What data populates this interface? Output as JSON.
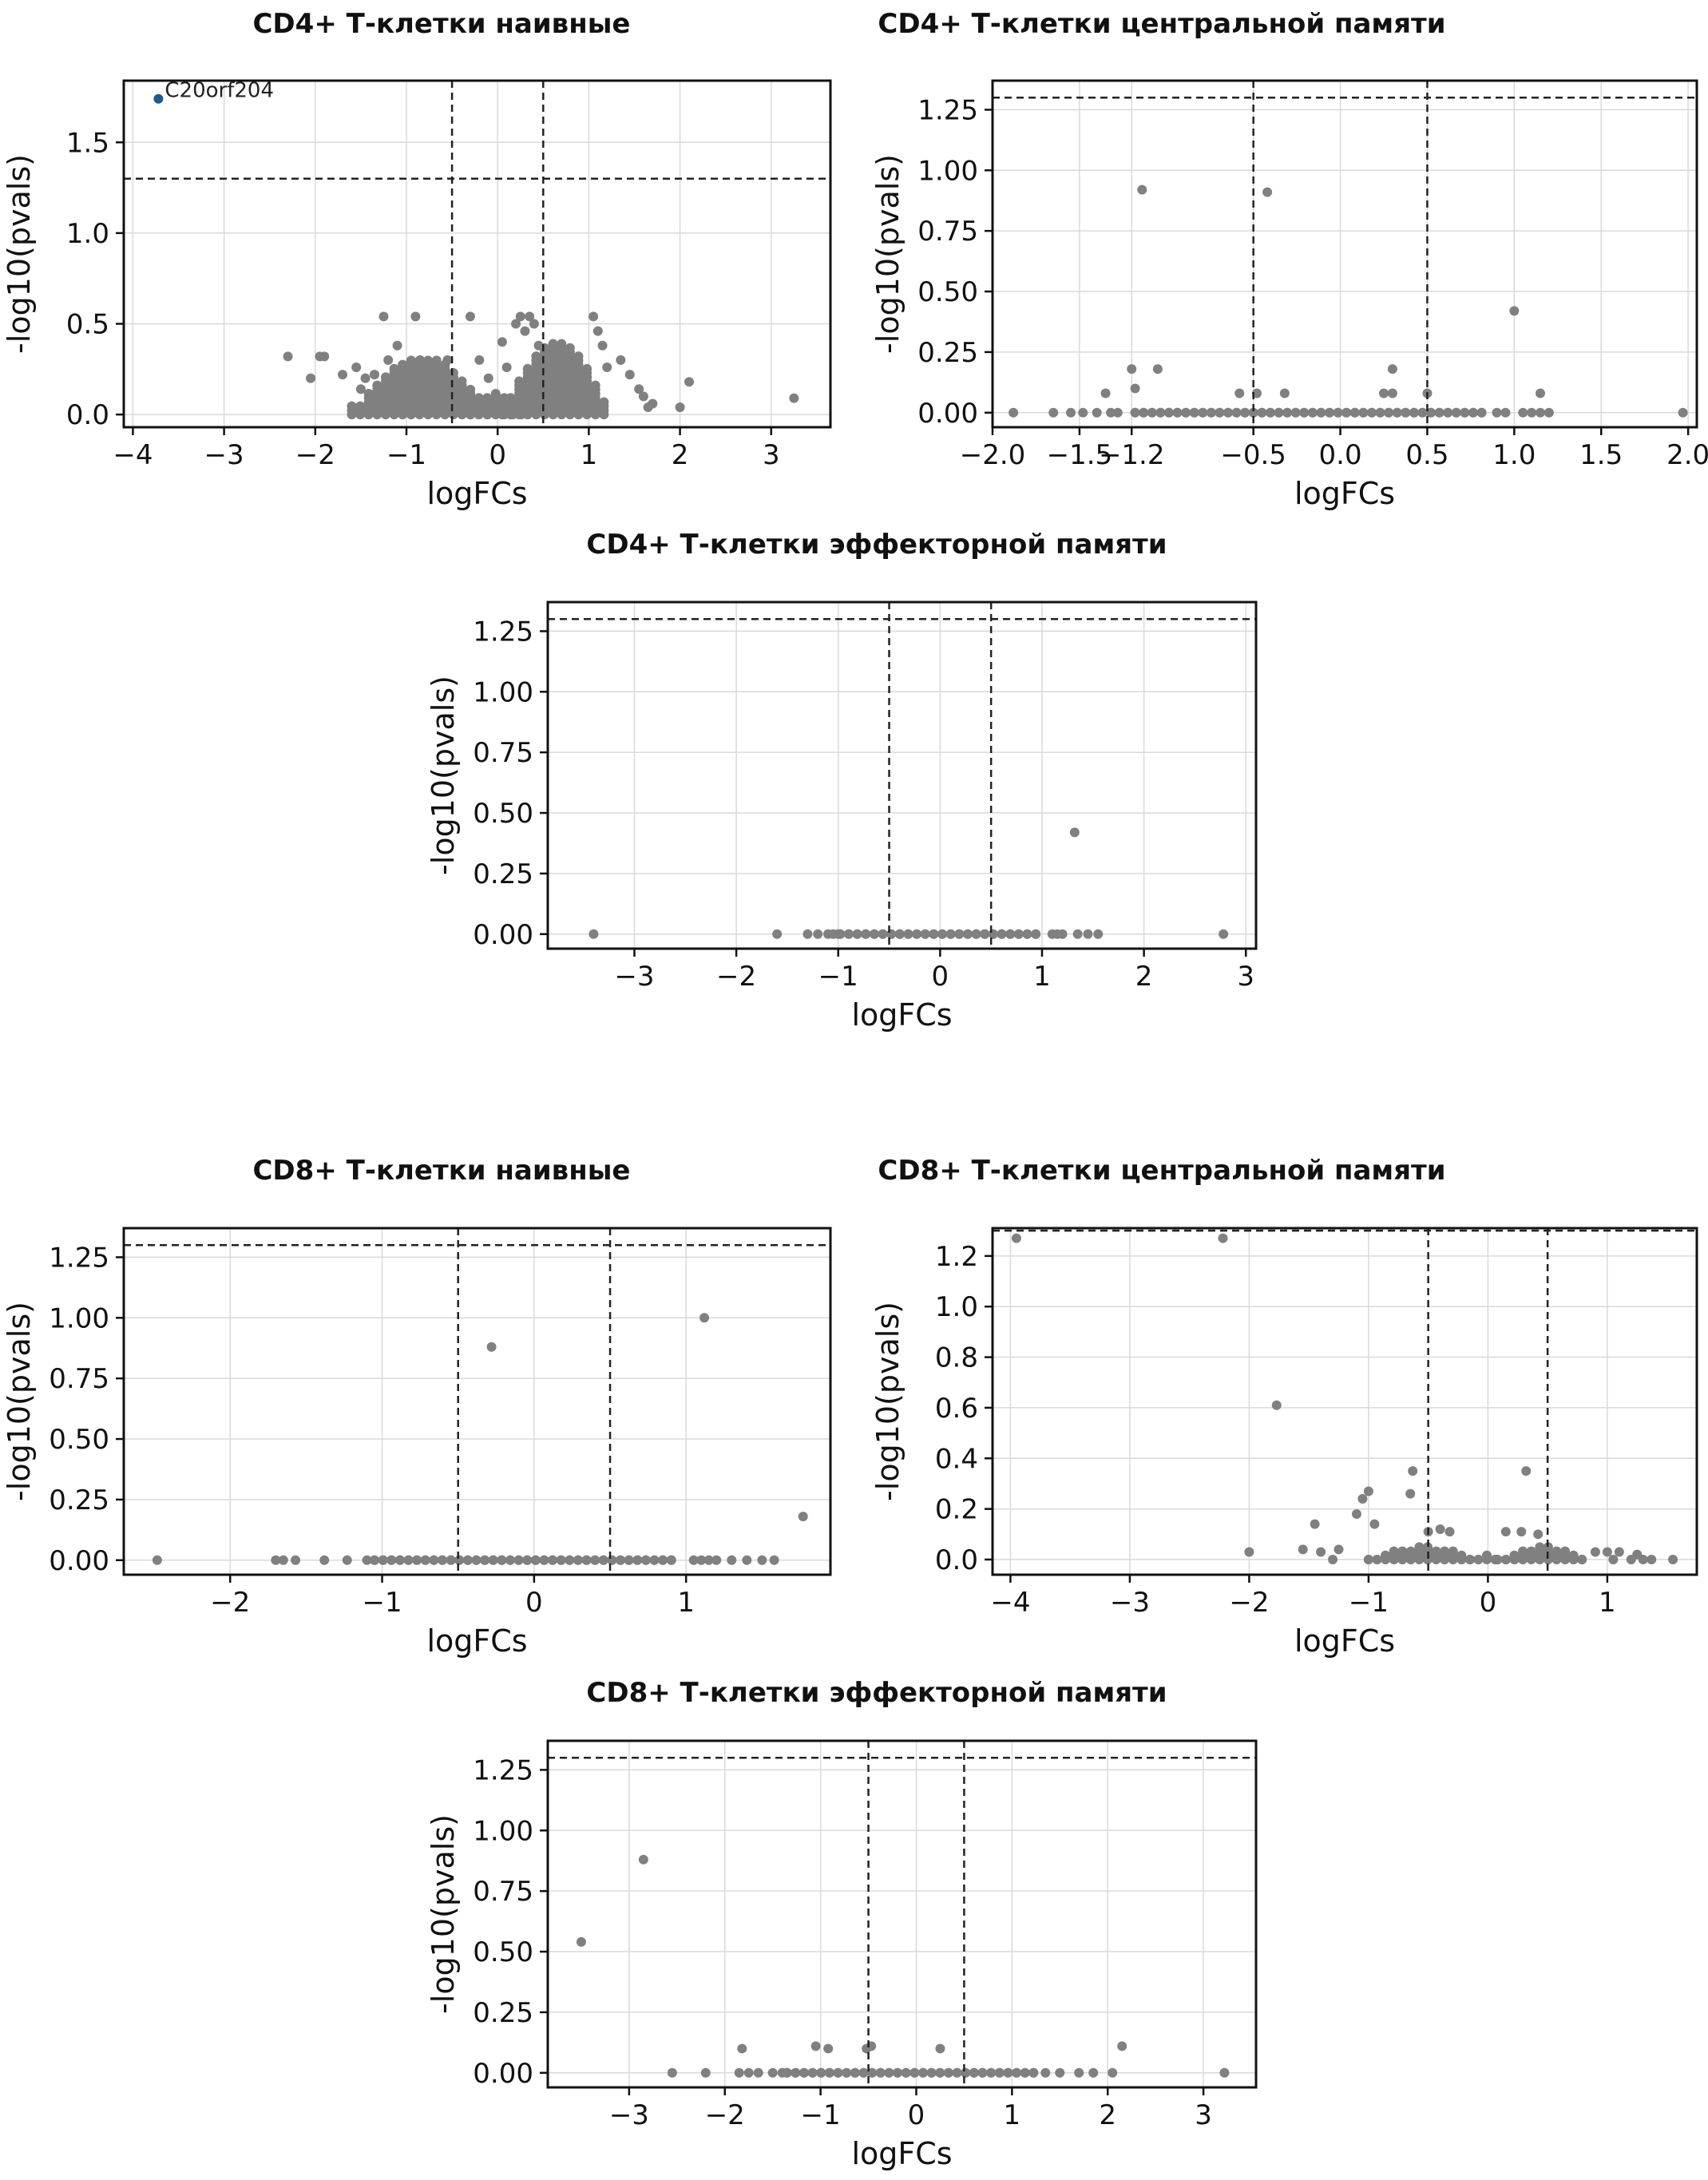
{
  "figure": {
    "background": "#ffffff",
    "point_color": "#808080",
    "highlight_color": "#1f5a8a",
    "grid_color": "#d9d9d9",
    "threshold_line_style": "dashed",
    "threshold_color": "#222222"
  },
  "chart_data": [
    {
      "type": "scatter",
      "title": "CD4+ Т-клетки наивные",
      "xlabel": "logFCs",
      "ylabel": "-log10(pvals)",
      "xlim": [
        -4.1,
        3.65
      ],
      "ylim": [
        -0.07,
        1.84
      ],
      "xticks": [
        -4,
        -3,
        -2,
        -1,
        0,
        1,
        2,
        3
      ],
      "xtick_labels": [
        "−4",
        "−3",
        "−2",
        "−1",
        "0",
        "1",
        "2",
        "3"
      ],
      "yticks": [
        0.0,
        0.5,
        1.0,
        1.5
      ],
      "ytick_labels": [
        "0.0",
        "0.5",
        "1.0",
        "1.5"
      ],
      "grid": true,
      "thresholds": {
        "y": 1.3,
        "x": [
          -0.5,
          0.5
        ]
      },
      "highlight_points": [
        {
          "x": -3.72,
          "y": 1.74,
          "label": "C20orf204"
        }
      ],
      "points": [
        [
          -2.3,
          0.32
        ],
        [
          -2.05,
          0.2
        ],
        [
          -1.95,
          0.32
        ],
        [
          -1.9,
          0.32
        ],
        [
          -1.7,
          0.22
        ],
        [
          -1.55,
          0.26
        ],
        [
          -1.5,
          0.14
        ],
        [
          -1.45,
          0.2
        ],
        [
          -1.35,
          0.22
        ],
        [
          -1.25,
          0.54
        ],
        [
          -1.2,
          0.3
        ],
        [
          -1.1,
          0.38
        ],
        [
          -1.05,
          0.26
        ],
        [
          -0.95,
          0.12
        ],
        [
          -0.9,
          0.54
        ],
        [
          -0.85,
          0.3
        ],
        [
          -0.75,
          0.22
        ],
        [
          -0.65,
          0.18
        ],
        [
          -0.55,
          0.3
        ],
        [
          -0.5,
          0.2
        ],
        [
          -0.4,
          0.14
        ],
        [
          -0.3,
          0.54
        ],
        [
          -0.2,
          0.3
        ],
        [
          -0.1,
          0.2
        ],
        [
          0.05,
          0.4
        ],
        [
          0.1,
          0.26
        ],
        [
          0.2,
          0.5
        ],
        [
          0.25,
          0.54
        ],
        [
          0.3,
          0.46
        ],
        [
          0.35,
          0.54
        ],
        [
          0.4,
          0.5
        ],
        [
          0.45,
          0.38
        ],
        [
          0.5,
          0.3
        ],
        [
          0.6,
          0.26
        ],
        [
          0.7,
          0.2
        ],
        [
          0.8,
          0.3
        ],
        [
          0.95,
          0.14
        ],
        [
          1.05,
          0.54
        ],
        [
          1.1,
          0.46
        ],
        [
          1.15,
          0.38
        ],
        [
          1.2,
          0.26
        ],
        [
          1.35,
          0.3
        ],
        [
          1.45,
          0.22
        ],
        [
          1.55,
          0.14
        ],
        [
          1.6,
          0.1
        ],
        [
          1.65,
          0.04
        ],
        [
          1.7,
          0.06
        ],
        [
          2.0,
          0.04
        ],
        [
          2.1,
          0.18
        ],
        [
          3.25,
          0.09
        ]
      ],
      "dense_bands": [
        {
          "x_from": -1.6,
          "x_to": -0.05,
          "y_max": 0.32
        },
        {
          "x_from": 0.05,
          "x_to": 1.25,
          "y_max": 0.4
        },
        {
          "x_from": -0.3,
          "x_to": 0.3,
          "y_max": 0.12
        }
      ]
    },
    {
      "type": "scatter",
      "title": "CD4+ Т-клетки центральной памяти",
      "xlabel": "logFCs",
      "ylabel": "-log10(pvals)",
      "xlim": [
        -2.0,
        2.05
      ],
      "ylim": [
        -0.06,
        1.37
      ],
      "xticks": [
        -2.0,
        -1.5,
        -1.2,
        -0.5,
        0.0,
        0.5,
        1.0,
        1.5,
        2.0
      ],
      "xtick_labels": [
        "−2.0",
        "−1.5",
        "−1.2",
        "−0.5",
        "0.0",
        "0.5",
        "1.0",
        "1.5",
        "2.0"
      ],
      "yticks": [
        0.0,
        0.25,
        0.5,
        0.75,
        1.0,
        1.25
      ],
      "ytick_labels": [
        "0.00",
        "0.25",
        "0.50",
        "0.75",
        "1.00",
        "1.25"
      ],
      "grid": true,
      "thresholds": {
        "y": 1.3,
        "x": [
          -0.5,
          0.5
        ]
      },
      "highlight_points": [],
      "points": [
        [
          -1.14,
          0.92
        ],
        [
          -0.42,
          0.91
        ],
        [
          1.0,
          0.42
        ],
        [
          -1.2,
          0.18
        ],
        [
          -1.05,
          0.18
        ],
        [
          0.3,
          0.18
        ],
        [
          -1.35,
          0.08
        ],
        [
          -1.18,
          0.1
        ],
        [
          -0.58,
          0.08
        ],
        [
          -0.48,
          0.08
        ],
        [
          -0.32,
          0.08
        ],
        [
          0.25,
          0.08
        ],
        [
          0.3,
          0.08
        ],
        [
          0.5,
          0.08
        ],
        [
          1.15,
          0.08
        ],
        [
          -1.88,
          0.0
        ],
        [
          -1.65,
          0.0
        ],
        [
          -1.55,
          0.0
        ],
        [
          -1.48,
          0.0
        ],
        [
          -1.4,
          0.0
        ],
        [
          -1.32,
          0.0
        ],
        [
          -1.28,
          0.0
        ],
        [
          0.9,
          0.0
        ],
        [
          0.95,
          0.0
        ],
        [
          1.05,
          0.0
        ],
        [
          1.1,
          0.0
        ],
        [
          1.15,
          0.0
        ],
        [
          1.2,
          0.0
        ],
        [
          1.97,
          0.0
        ]
      ],
      "dense_bands": [
        {
          "x_from": -1.18,
          "x_to": 0.82,
          "y_max": 0.0
        }
      ]
    },
    {
      "type": "scatter",
      "title": "CD4+ Т-клетки эффекторной памяти",
      "xlabel": "logFCs",
      "ylabel": "-log10(pvals)",
      "xlim": [
        -3.85,
        3.1
      ],
      "ylim": [
        -0.06,
        1.37
      ],
      "xticks": [
        -3,
        -2,
        -1,
        0,
        1,
        2,
        3
      ],
      "xtick_labels": [
        "−3",
        "−2",
        "−1",
        "0",
        "1",
        "2",
        "3"
      ],
      "yticks": [
        0.0,
        0.25,
        0.5,
        0.75,
        1.0,
        1.25
      ],
      "ytick_labels": [
        "0.00",
        "0.25",
        "0.50",
        "0.75",
        "1.00",
        "1.25"
      ],
      "grid": true,
      "thresholds": {
        "y": 1.3,
        "x": [
          -0.5,
          0.5
        ]
      },
      "highlight_points": [],
      "points": [
        [
          1.32,
          0.42
        ],
        [
          -3.4,
          0.0
        ],
        [
          -1.6,
          0.0
        ],
        [
          -1.3,
          0.0
        ],
        [
          -1.2,
          0.0
        ],
        [
          -1.1,
          0.0
        ],
        [
          -1.05,
          0.0
        ],
        [
          -1.0,
          0.0
        ],
        [
          1.1,
          0.0
        ],
        [
          1.15,
          0.0
        ],
        [
          1.2,
          0.0
        ],
        [
          1.35,
          0.0
        ],
        [
          1.45,
          0.0
        ],
        [
          1.55,
          0.0
        ],
        [
          2.78,
          0.0
        ]
      ],
      "dense_bands": [
        {
          "x_from": -0.98,
          "x_to": 1.02,
          "y_max": 0.0
        }
      ]
    },
    {
      "type": "scatter",
      "title": "CD8+ Т-клетки наивные",
      "xlabel": "logFCs",
      "ylabel": "-log10(pvals)",
      "xlim": [
        -2.7,
        1.95
      ],
      "ylim": [
        -0.06,
        1.37
      ],
      "xticks": [
        -2,
        -1,
        0,
        1
      ],
      "xtick_labels": [
        "−2",
        "−1",
        "0",
        "1"
      ],
      "yticks": [
        0.0,
        0.25,
        0.5,
        0.75,
        1.0,
        1.25
      ],
      "ytick_labels": [
        "0.00",
        "0.25",
        "0.50",
        "0.75",
        "1.00",
        "1.25"
      ],
      "grid": true,
      "thresholds": {
        "y": 1.3,
        "x": [
          -0.5,
          0.5
        ]
      },
      "highlight_points": [],
      "points": [
        [
          -0.28,
          0.88
        ],
        [
          1.12,
          1.0
        ],
        [
          1.77,
          0.18
        ],
        [
          -2.48,
          0.0
        ],
        [
          -1.7,
          0.0
        ],
        [
          -1.65,
          0.0
        ],
        [
          -1.57,
          0.0
        ],
        [
          -1.38,
          0.0
        ],
        [
          -1.23,
          0.0
        ],
        [
          -1.1,
          0.0
        ],
        [
          1.05,
          0.0
        ],
        [
          1.1,
          0.0
        ],
        [
          1.15,
          0.0
        ],
        [
          1.2,
          0.0
        ],
        [
          1.3,
          0.0
        ],
        [
          1.4,
          0.0
        ],
        [
          1.5,
          0.0
        ],
        [
          1.58,
          0.0
        ]
      ],
      "dense_bands": [
        {
          "x_from": -1.05,
          "x_to": 0.93,
          "y_max": 0.0
        }
      ]
    },
    {
      "type": "scatter",
      "title": "CD8+ Т-клетки центральной памяти",
      "xlabel": "logFCs",
      "ylabel": "-log10(pvals)",
      "xlim": [
        -4.15,
        1.75
      ],
      "ylim": [
        -0.06,
        1.31
      ],
      "xticks": [
        -4,
        -3,
        -2,
        -1,
        0,
        1
      ],
      "xtick_labels": [
        "−4",
        "−3",
        "−2",
        "−1",
        "0",
        "1"
      ],
      "yticks": [
        0.0,
        0.2,
        0.4,
        0.6,
        0.8,
        1.0,
        1.2
      ],
      "ytick_labels": [
        "0.0",
        "0.2",
        "0.4",
        "0.6",
        "0.8",
        "1.0",
        "1.2"
      ],
      "grid": true,
      "thresholds": {
        "y": 1.3,
        "x": [
          -0.5,
          0.5
        ]
      },
      "highlight_points": [],
      "points": [
        [
          -3.95,
          1.27
        ],
        [
          -2.22,
          1.27
        ],
        [
          -1.77,
          0.61
        ],
        [
          -0.63,
          0.35
        ],
        [
          0.32,
          0.35
        ],
        [
          -1.0,
          0.27
        ],
        [
          -1.05,
          0.24
        ],
        [
          -0.65,
          0.26
        ],
        [
          -1.1,
          0.18
        ],
        [
          -0.95,
          0.14
        ],
        [
          -1.45,
          0.14
        ],
        [
          -0.4,
          0.12
        ],
        [
          -0.32,
          0.11
        ],
        [
          -0.5,
          0.11
        ],
        [
          0.15,
          0.11
        ],
        [
          0.28,
          0.11
        ],
        [
          0.42,
          0.1
        ],
        [
          -2.0,
          0.03
        ],
        [
          -1.55,
          0.04
        ],
        [
          -1.4,
          0.03
        ],
        [
          -1.25,
          0.04
        ],
        [
          -1.3,
          0.0
        ],
        [
          0.9,
          0.03
        ],
        [
          1.0,
          0.03
        ],
        [
          1.05,
          0.0
        ],
        [
          1.1,
          0.03
        ],
        [
          1.2,
          0.0
        ],
        [
          1.25,
          0.02
        ],
        [
          1.3,
          0.0
        ],
        [
          1.37,
          0.0
        ],
        [
          1.55,
          0.0
        ]
      ],
      "dense_bands": [
        {
          "x_from": -1.0,
          "x_to": -0.08,
          "y_max": 0.05
        },
        {
          "x_from": -0.08,
          "x_to": 0.08,
          "y_max": 0.02
        },
        {
          "x_from": 0.08,
          "x_to": 0.85,
          "y_max": 0.05
        }
      ]
    },
    {
      "type": "scatter",
      "title": "CD8+ Т-клетки эффекторной памяти",
      "xlabel": "logFCs",
      "ylabel": "-log10(pvals)",
      "xlim": [
        -3.85,
        3.55
      ],
      "ylim": [
        -0.06,
        1.37
      ],
      "xticks": [
        -3,
        -2,
        -1,
        0,
        1,
        2,
        3
      ],
      "xtick_labels": [
        "−3",
        "−2",
        "−1",
        "0",
        "1",
        "2",
        "3"
      ],
      "yticks": [
        0.0,
        0.25,
        0.5,
        0.75,
        1.0,
        1.25
      ],
      "ytick_labels": [
        "0.00",
        "0.25",
        "0.50",
        "0.75",
        "1.00",
        "1.25"
      ],
      "grid": true,
      "thresholds": {
        "y": 1.3,
        "x": [
          -0.5,
          0.5
        ]
      },
      "highlight_points": [],
      "points": [
        [
          -2.85,
          0.88
        ],
        [
          -3.5,
          0.54
        ],
        [
          2.15,
          0.11
        ],
        [
          -1.82,
          0.1
        ],
        [
          -1.05,
          0.11
        ],
        [
          -0.92,
          0.1
        ],
        [
          -0.52,
          0.1
        ],
        [
          -0.47,
          0.11
        ],
        [
          0.25,
          0.1
        ],
        [
          -2.55,
          0.0
        ],
        [
          -2.2,
          0.0
        ],
        [
          -1.85,
          0.0
        ],
        [
          -1.75,
          0.0
        ],
        [
          -1.65,
          0.0
        ],
        [
          -1.5,
          0.0
        ],
        [
          -1.4,
          0.0
        ],
        [
          1.35,
          0.0
        ],
        [
          1.5,
          0.0
        ],
        [
          1.7,
          0.0
        ],
        [
          1.85,
          0.0
        ],
        [
          2.05,
          0.0
        ],
        [
          3.22,
          0.0
        ]
      ],
      "dense_bands": [
        {
          "x_from": -1.35,
          "x_to": 1.25,
          "y_max": 0.0
        }
      ]
    }
  ]
}
